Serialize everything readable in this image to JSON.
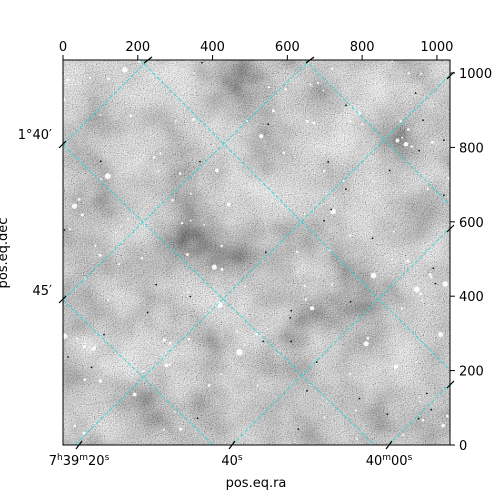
{
  "chart_data": {
    "type": "image",
    "xlabel": "pos.eq.ra",
    "ylabel": "pos.eq.dec",
    "pixel_axes": {
      "top_ticks": [
        "0",
        "200",
        "400",
        "600",
        "800",
        "1000"
      ],
      "top_values": [
        0,
        200,
        400,
        600,
        800,
        1000
      ],
      "right_ticks": [
        "0",
        "200",
        "400",
        "600",
        "800",
        "1000"
      ],
      "right_values": [
        0,
        200,
        400,
        600,
        800,
        1000
      ],
      "xlim": [
        0,
        1035
      ],
      "ylim": [
        0,
        1035
      ]
    },
    "world_axes": {
      "ra_tick_labels": [
        {
          "h": "7",
          "m": "39",
          "s": "20"
        },
        {
          "s": "40"
        },
        {
          "m": "40",
          "s": "00"
        }
      ],
      "dec_tick_labels": [
        "1°40′",
        "45′"
      ]
    },
    "grid": true,
    "grid_color": "#2ad4d4",
    "image_colormap": "gray",
    "background": "#ffffff"
  }
}
